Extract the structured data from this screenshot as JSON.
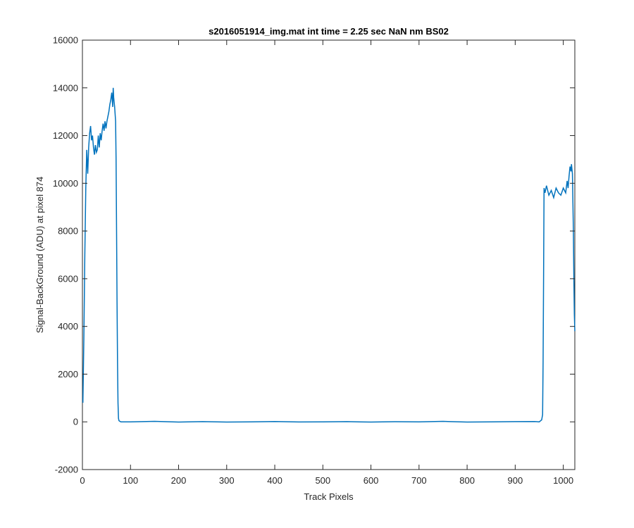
{
  "chart_data": {
    "type": "line",
    "title": "s2016051914_img.mat int time = 2.25 sec  NaN nm BS02",
    "xlabel": "Track Pixels",
    "ylabel": "Signal-BackGround (ADU) at pixel 874",
    "xlim": [
      0,
      1024
    ],
    "ylim": [
      -2000,
      16000
    ],
    "x_ticks": [
      0,
      100,
      200,
      300,
      400,
      500,
      600,
      700,
      800,
      900,
      1000
    ],
    "y_ticks": [
      -2000,
      0,
      2000,
      4000,
      6000,
      8000,
      10000,
      12000,
      14000,
      16000
    ],
    "grid": false,
    "series": [
      {
        "color": "#0072bd",
        "x": [
          1,
          3,
          5,
          7,
          9,
          11,
          13,
          15,
          17,
          19,
          21,
          23,
          25,
          27,
          29,
          31,
          33,
          35,
          37,
          39,
          41,
          43,
          45,
          47,
          49,
          51,
          53,
          55,
          57,
          59,
          61,
          63,
          64,
          65,
          67,
          68,
          69,
          70,
          71,
          72,
          73,
          74,
          75,
          76,
          78,
          80,
          100,
          150,
          200,
          250,
          300,
          350,
          400,
          450,
          500,
          550,
          600,
          650,
          700,
          750,
          800,
          850,
          900,
          940,
          950,
          955,
          957,
          958,
          959,
          960,
          962,
          965,
          970,
          975,
          980,
          985,
          990,
          995,
          1000,
          1005,
          1008,
          1010,
          1012,
          1014,
          1016,
          1017,
          1018,
          1019,
          1020,
          1021,
          1022,
          1023,
          1024
        ],
        "y": [
          800,
          3500,
          7000,
          9800,
          11400,
          10400,
          11500,
          12100,
          12400,
          11800,
          12000,
          11500,
          11200,
          11600,
          11300,
          11400,
          12000,
          11500,
          12100,
          11800,
          12200,
          12500,
          12200,
          12600,
          12300,
          12600,
          12800,
          13000,
          13300,
          13500,
          13800,
          13200,
          14000,
          13600,
          13200,
          12900,
          12600,
          11000,
          8000,
          5000,
          2500,
          800,
          150,
          50,
          20,
          0,
          0,
          20,
          -10,
          10,
          -10,
          0,
          15,
          -5,
          0,
          10,
          -10,
          5,
          0,
          20,
          -10,
          0,
          10,
          15,
          0,
          80,
          300,
          2500,
          6000,
          9800,
          9600,
          9900,
          9500,
          9700,
          9400,
          9800,
          9600,
          9500,
          9800,
          9600,
          10100,
          9800,
          10300,
          10700,
          10500,
          10800,
          10600,
          10400,
          9200,
          8000,
          6000,
          4500,
          3800
        ]
      }
    ]
  }
}
